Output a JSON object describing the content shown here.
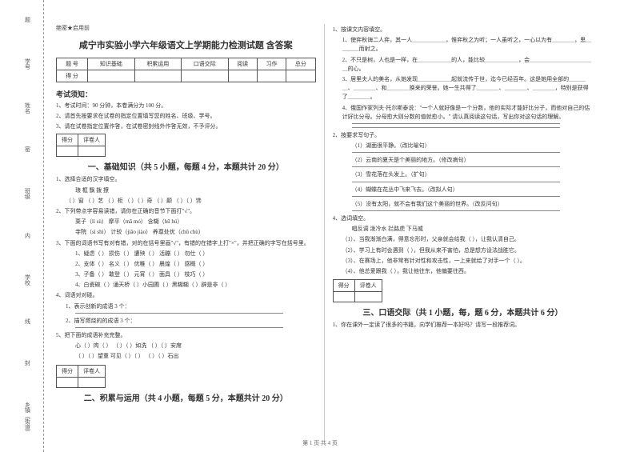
{
  "binding": {
    "labels": [
      "题",
      "学号",
      "姓名",
      "班级",
      "内",
      "学校",
      "线",
      "封",
      "乡镇（街道）"
    ],
    "instruction": "密"
  },
  "confidential": "绝密★启用前",
  "title": "咸宁市实验小学六年级语文上学期能力检测试题  含答案",
  "score_table": {
    "headers": [
      "题    号",
      "知识基础",
      "积累运用",
      "口语交际",
      "阅读",
      "习作",
      "总分"
    ],
    "row_label": "得    分"
  },
  "notice_title": "考试须知：",
  "notices": [
    "1、考试时间：90 分钟，本卷满分为 100 分。",
    "2、请首先按要求在试卷的指定位置填写您的姓名、班级、学号。",
    "3、请在试卷指定位置作答，在试卷密封线外作答无效，不予评分。"
  ],
  "minibox": {
    "c1": "得分",
    "c2": "评卷人"
  },
  "section1": {
    "title": "一、基础知识（共 5 小题，每题 4 分，本题共计 20 分）",
    "q1": "1、选择合适的汉字填空。",
    "q1_chars": "琅        框        飘        拨        撩",
    "q1_line": "（   ）窗  （   ）艺  （   ）柜 （   ）（   ）奇 （   ）颠  （   ）（   ）馋",
    "q2": "2、下列带点字容易读错，请你在正确的音节下面打\"√\"。",
    "q2_r1": "栗子（lì  sù）         摩平（mā  mó）           含糊（hū  hú）",
    "q2_r2": "寺院（sì  shì）        计较（jiǎo  jiào）        养尊处优（chǔ  chù）",
    "q3": "3、下面的词语书写有对有错，对的在括号里画\"√\"，有错的在错字上打\"×\"，并把正确的字写在括号里。",
    "q3_r1": "1、疑虑（   ） 损伤（   ）  遭殃（   ）  活蹦（   ）  勿仕（   ）",
    "q3_r2": "2、支体（   ） 名义（   ）  优稚（   ）  晨煌（   ）  感概（   ）",
    "q3_r3": "3、子备（   ） 敢登（   ）  元宵（   ）  面具（   ）  枝巧（   ）",
    "q3_r4": "4、白瓷碗（   ）诵天桥（   ）小园圃（   ）黑糊糊（   ）辟是非（   ）",
    "q4": "4、词语对对碰。",
    "q4_r1": "1、表示创新的成语 3 个：",
    "q4_r2": "2、描写燃烧的的成语 3 个：",
    "q5": "5、把下面的成语补充完整。",
    "q5_r1": "心（   ）肉（   ） （   ）（   ）如洗  （   ）（   ）安席",
    "q5_r2": "（   ）（   ）望重  可见（   ）（   ） （   ）（   ）石出"
  },
  "section2": {
    "title": "二、积累与运用（共 4 小题，每题 5 分，本题共计 20 分）"
  },
  "col2": {
    "q1": "1、按课文内容填空。",
    "q1_1": "1、使弈秋诲二人弈，其一人＿＿＿＿＿＿，惟弈秋之为听；一人虽听之，一心以为有＿＿＿＿，思＿＿＿＿而射之。",
    "q1_2": "2、不只是树，人也是一样，在＿＿＿＿＿＿的人，能比较＿＿＿＿＿＿，会＿＿＿＿＿＿＿＿＿＿＿＿的心。",
    "q1_3": "3、居里夫人的美名，从她发现＿＿＿＿＿＿起就流传于世，迄今已经百年。这是她用全部的＿＿＿＿、＿＿＿＿、和＿＿＿＿换来的荣誉。她一生共得了＿＿＿＿、＿＿＿＿、＿＿＿＿，特别是获得了＿＿＿＿。",
    "q1_4": "4、俄国作家列夫·托尔斯泰说：\"一个人就好像是一个分数，他的实际才能好比分子，而他对自己的估计好比分母。分母愈大则分数的值就愈小。\"  请认真阅读这句话，写出你对这句话的理解。",
    "q2": "2、按要求写句子。",
    "q2_1": "（1）湖面很平静。（改比喻句）",
    "q2_2": "（2）云南的夏天是个美丽的地方。（修改病句）",
    "q2_3": "（3）雪花落在头发上。（扩句）",
    "q2_4": "（4）蝴蝶在花丛中飞来飞去。（改拟人句）",
    "q2_5": "（5）没有太阳，就不会有我们这个美丽的世界。（改反问句）",
    "q4": "4、选词填空。",
    "q4_words": "唱反调      泼冷水      拦路虎      下马威",
    "q4_1": "（1）、当我渐渐白满，得意忘形时，父亲就会给我（         ），让我认清自己。",
    "q4_2": "（2）、学习上有时会遇到（         ），但我从来不害怕，总是想方设法战胜它。",
    "q4_3": "（3）、在赛场上，他非常有针对性和攻击性，一上来就给了对手一个（         ）。",
    "q4_4": "（4）、他总爱跟我（         ），我让他往东，他偏要往西。"
  },
  "section3": {
    "title": "三、口语交际（共 1 小题，每，题 6 分，本题共计 6 分）",
    "q1": "1、你在课外一定读了很多的书籍，向学们推荐一本好吗？请写一段推荐词。"
  },
  "footer": "第 1 页 共 4 页"
}
